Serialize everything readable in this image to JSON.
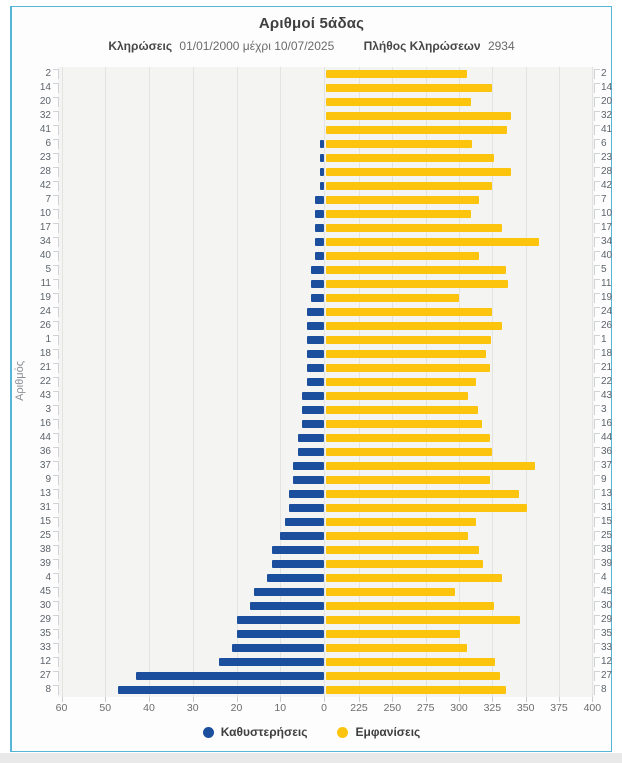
{
  "header": {
    "title": "Αριθμοί 5άδας",
    "subtitle_draws_label": "Κληρώσεις",
    "subtitle_draws_value": "01/01/2000 μέχρι 10/07/2025",
    "subtitle_count_label": "Πλήθος Κληρώσεων",
    "subtitle_count_value": "2934"
  },
  "colors": {
    "frame_border": "#55b6d8",
    "delay_blue": "#1b4f9e",
    "appearance_yellow": "#fcc40d",
    "plot_background": "#f4f4f3"
  },
  "chart_data": {
    "type": "bar",
    "variant": "horizontal-diverging",
    "title": "Αριθμοί 5άδας",
    "ylabel": "Αριθμός",
    "grid": true,
    "legend_position": "bottom",
    "categories": [
      2,
      14,
      20,
      32,
      41,
      6,
      23,
      28,
      42,
      7,
      10,
      17,
      34,
      40,
      5,
      11,
      19,
      24,
      26,
      1,
      18,
      21,
      22,
      43,
      3,
      16,
      44,
      36,
      37,
      9,
      13,
      31,
      15,
      25,
      38,
      39,
      4,
      45,
      30,
      29,
      35,
      33,
      12,
      27,
      8
    ],
    "series": [
      {
        "name": "Καθυστερήσεις",
        "color": "#1b4f9e",
        "axis": "left",
        "values": [
          0,
          0,
          0,
          0,
          0,
          1,
          1,
          1,
          1,
          2,
          2,
          2,
          2,
          2,
          3,
          3,
          3,
          4,
          4,
          4,
          4,
          4,
          4,
          5,
          5,
          5,
          6,
          6,
          7,
          7,
          8,
          8,
          9,
          10,
          12,
          12,
          13,
          16,
          17,
          20,
          20,
          21,
          24,
          43,
          47
        ]
      },
      {
        "name": "Εμφανίσεις",
        "color": "#fcc40d",
        "axis": "right",
        "values": [
          306,
          325,
          309,
          339,
          336,
          310,
          326,
          339,
          325,
          315,
          309,
          332,
          360,
          315,
          335,
          337,
          300,
          325,
          332,
          324,
          320,
          323,
          313,
          307,
          314,
          317,
          323,
          325,
          357,
          323,
          345,
          351,
          313,
          307,
          315,
          318,
          332,
          297,
          326,
          346,
          301,
          306,
          327,
          331,
          335
        ]
      }
    ],
    "left_axis": {
      "ticks": [
        60,
        50,
        40,
        30,
        20,
        10,
        0
      ],
      "range": [
        0,
        60
      ],
      "direction": "leftward"
    },
    "right_axis": {
      "ticks": [
        225,
        250,
        275,
        300,
        325,
        350,
        375,
        400
      ],
      "range": [
        225,
        400
      ],
      "broken_at_zero": true
    }
  }
}
